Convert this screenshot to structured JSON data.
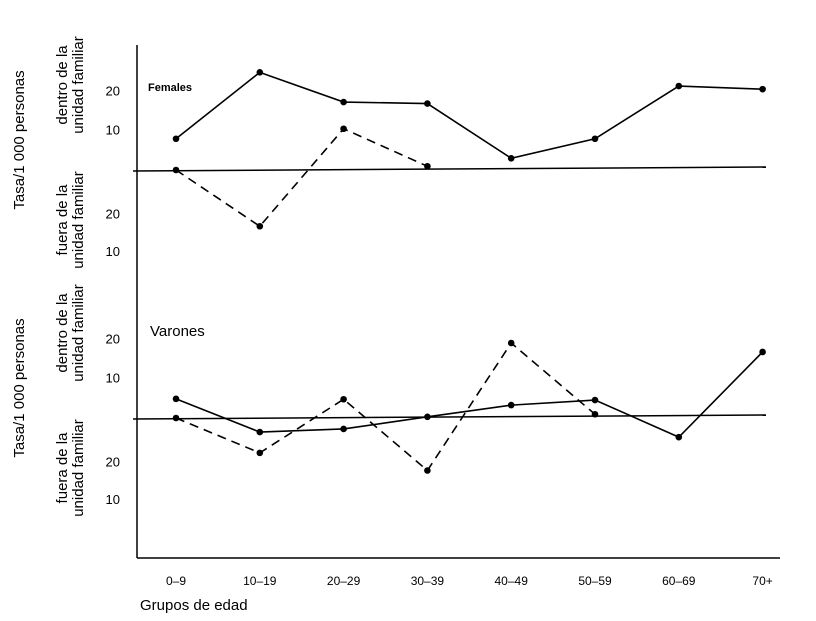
{
  "chart_data": [
    {
      "type": "line",
      "panel_label": "Females",
      "y_label": "Tasa/1 000 personas",
      "upper_label": [
        "dentro de la",
        "unidad familiar"
      ],
      "lower_label": [
        "fuera de la",
        "unidad familiar"
      ],
      "ylim": [
        0,
        32
      ],
      "yticks": [
        10,
        20
      ],
      "y2lim": [
        0,
        32
      ],
      "y2ticks": [
        10,
        20
      ],
      "series": [
        {
          "color": "#000000",
          "dash": false,
          "values": [
            8,
            25,
            17.4,
            17,
            3,
            8,
            21.5,
            20.7
          ]
        },
        {
          "color": "#000000",
          "dash": true,
          "axis": "y2",
          "values": [
            32,
            17,
            43,
            33,
            null,
            null,
            null,
            null
          ]
        }
      ]
    },
    {
      "type": "line",
      "panel_label": "Varones",
      "y_label": "Tasa/1 000 personas",
      "upper_label": [
        "dentro de la",
        "unidad familiar"
      ],
      "lower_label": [
        "fuera de la",
        "unidad familiar"
      ],
      "x_label": "Grupos de edad",
      "categories": [
        "0–9",
        "10–19",
        "20–29",
        "30–39",
        "40–49",
        "50–59",
        "60–69",
        "70+"
      ],
      "ylim": [
        0,
        32
      ],
      "yticks": [
        10,
        20
      ],
      "y2lim": [
        0,
        32
      ],
      "y2ticks": [
        10,
        20
      ],
      "series": [
        {
          "color": "#000000",
          "dash": false,
          "values": [
            4.9,
            -3.6,
            -2.8,
            0.3,
            3.3,
            4.6,
            -4.9,
            16.9
          ]
        },
        {
          "color": "#000000",
          "dash": true,
          "axis": "y2",
          "values": [
            32,
            22.7,
            37,
            18,
            52,
            33,
            null,
            null
          ]
        }
      ]
    }
  ]
}
